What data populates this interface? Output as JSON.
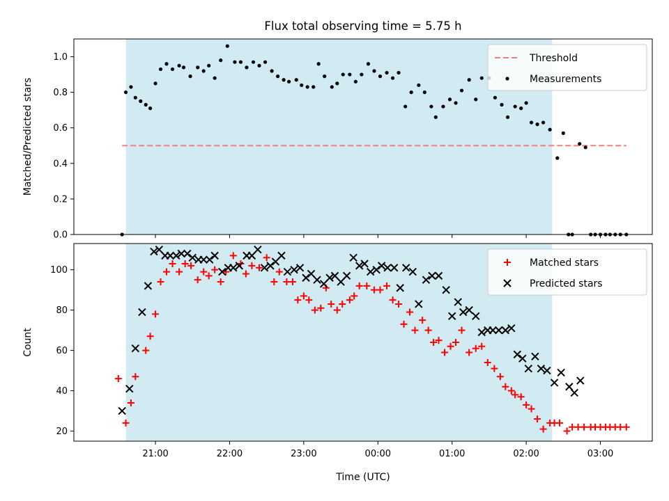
{
  "chart_data": [
    {
      "type": "scatter",
      "title": "Flux total observing time = 5.75 h",
      "xlabel": "",
      "ylabel": "Matched/Predicted stars",
      "ylim": [
        0,
        1.1
      ],
      "yticks": [
        "0.0",
        "0.2",
        "0.4",
        "0.6",
        "0.8",
        "1.0"
      ],
      "xlim_hours": [
        19.9,
        27.7
      ],
      "shaded_interval_hours": [
        20.6,
        26.35
      ],
      "shade_color": "#add8e6",
      "threshold": {
        "name": "Threshold",
        "value": 0.5,
        "x_range_hours": [
          20.55,
          27.35
        ],
        "color": "#f08080"
      },
      "legend": {
        "position": "upper right",
        "entries": [
          "Threshold",
          "Measurements"
        ]
      },
      "series": [
        {
          "name": "Measurements",
          "marker": "dot",
          "color": "#000000",
          "x": [
            20.55,
            20.6,
            20.67,
            20.73,
            20.8,
            20.87,
            20.93,
            21.0,
            21.07,
            21.15,
            21.23,
            21.32,
            21.38,
            21.47,
            21.57,
            21.65,
            21.72,
            21.8,
            21.88,
            21.97,
            22.07,
            22.15,
            22.23,
            22.32,
            22.4,
            22.48,
            22.57,
            22.65,
            22.73,
            22.8,
            22.9,
            22.97,
            23.05,
            23.13,
            23.2,
            23.28,
            23.38,
            23.45,
            23.53,
            23.62,
            23.7,
            23.78,
            23.87,
            23.95,
            24.03,
            24.12,
            24.2,
            24.28,
            24.37,
            24.45,
            24.55,
            24.63,
            24.72,
            24.78,
            24.88,
            24.97,
            25.05,
            25.13,
            25.23,
            25.32,
            25.4,
            25.5,
            25.58,
            25.67,
            25.75,
            25.85,
            25.93,
            26.0,
            26.07,
            26.15,
            26.23,
            26.32,
            26.42,
            26.5,
            26.57,
            26.62,
            26.72,
            26.8,
            26.87,
            26.93,
            27.0,
            27.07,
            27.13,
            27.2,
            27.27,
            27.35
          ],
          "y": [
            0.0,
            0.8,
            0.83,
            0.77,
            0.75,
            0.73,
            0.71,
            0.85,
            0.93,
            0.96,
            0.93,
            0.95,
            0.94,
            0.89,
            0.94,
            0.92,
            0.95,
            0.88,
            0.98,
            1.06,
            0.97,
            0.97,
            0.94,
            0.97,
            0.95,
            0.97,
            0.92,
            0.89,
            0.87,
            0.86,
            0.87,
            0.84,
            0.83,
            0.83,
            0.96,
            0.89,
            0.83,
            0.85,
            0.9,
            0.9,
            0.86,
            0.9,
            0.96,
            0.92,
            0.89,
            0.91,
            0.88,
            0.91,
            0.72,
            0.8,
            0.84,
            0.8,
            0.72,
            0.66,
            0.72,
            0.76,
            0.74,
            0.81,
            0.87,
            0.76,
            0.88,
            0.88,
            0.77,
            0.73,
            0.66,
            0.72,
            0.71,
            0.74,
            0.63,
            0.62,
            0.63,
            0.59,
            0.43,
            0.57,
            0.0,
            0.0,
            0.51,
            0.49,
            0.0,
            0.0,
            0.0,
            0.0,
            0.0,
            0.0,
            0.0,
            0.0
          ]
        }
      ]
    },
    {
      "type": "scatter",
      "title": "",
      "xlabel": "Time (UTC)",
      "ylabel": "Count",
      "ylim": [
        15,
        113
      ],
      "yticks": [
        "20",
        "40",
        "60",
        "80",
        "100"
      ],
      "xticks": [
        "21:00",
        "22:00",
        "23:00",
        "00:00",
        "01:00",
        "02:00",
        "03:00"
      ],
      "xlim_hours": [
        19.9,
        27.7
      ],
      "shaded_interval_hours": [
        20.6,
        26.35
      ],
      "shade_color": "#add8e6",
      "legend": {
        "position": "upper right",
        "entries": [
          "Matched stars",
          "Predicted stars"
        ]
      },
      "series": [
        {
          "name": "Matched stars",
          "marker": "plus",
          "color": "#ff0000",
          "x": [
            20.5,
            20.6,
            20.67,
            20.73,
            20.87,
            20.93,
            21.0,
            21.07,
            21.15,
            21.23,
            21.32,
            21.4,
            21.48,
            21.57,
            21.65,
            21.72,
            21.8,
            21.88,
            21.95,
            22.05,
            22.15,
            22.22,
            22.3,
            22.4,
            22.5,
            22.6,
            22.67,
            22.77,
            22.85,
            22.92,
            23.0,
            23.07,
            23.15,
            23.23,
            23.3,
            23.37,
            23.45,
            23.52,
            23.62,
            23.68,
            23.75,
            23.85,
            23.95,
            24.03,
            24.12,
            24.2,
            24.28,
            24.35,
            24.43,
            24.5,
            24.6,
            24.68,
            24.75,
            24.82,
            24.9,
            24.98,
            25.05,
            25.13,
            25.23,
            25.32,
            25.4,
            25.48,
            25.57,
            25.65,
            25.72,
            25.8,
            25.85,
            25.93,
            26.0,
            26.07,
            26.15,
            26.23,
            26.32,
            26.38,
            26.45,
            26.55,
            26.62,
            26.7,
            26.78,
            26.87,
            26.93,
            27.0,
            27.07,
            27.13,
            27.2,
            27.27,
            27.35
          ],
          "y": [
            46,
            24,
            34,
            47,
            60,
            67,
            78,
            94,
            99,
            103,
            99,
            103,
            102,
            95,
            99,
            97,
            100,
            94,
            99,
            107,
            103,
            98,
            102,
            101,
            106,
            94,
            99,
            94,
            94,
            85,
            87,
            85,
            80,
            81,
            91,
            83,
            80,
            83,
            85,
            87,
            92,
            92,
            90,
            90,
            92,
            85,
            83,
            73,
            79,
            70,
            75,
            70,
            64,
            65,
            59,
            62,
            64,
            70,
            59,
            61,
            62,
            54,
            51,
            47,
            42,
            40,
            38,
            37,
            33,
            31,
            26,
            21,
            24,
            24,
            24,
            20,
            22,
            22,
            22,
            22,
            22,
            22,
            22,
            22,
            22,
            22,
            22
          ]
        },
        {
          "name": "Predicted stars",
          "marker": "x",
          "color": "#000000",
          "x": [
            20.55,
            20.65,
            20.73,
            20.82,
            20.9,
            20.98,
            21.05,
            21.13,
            21.2,
            21.28,
            21.35,
            21.43,
            21.5,
            21.58,
            21.65,
            21.73,
            21.8,
            21.9,
            21.98,
            22.05,
            22.13,
            22.23,
            22.3,
            22.38,
            22.47,
            22.55,
            22.62,
            22.7,
            22.78,
            22.87,
            22.95,
            23.03,
            23.1,
            23.18,
            23.27,
            23.35,
            23.42,
            23.5,
            23.58,
            23.67,
            23.75,
            23.82,
            23.9,
            23.98,
            24.05,
            24.13,
            24.22,
            24.3,
            24.38,
            24.47,
            24.55,
            24.65,
            24.73,
            24.82,
            24.92,
            25.0,
            25.08,
            25.15,
            25.23,
            25.32,
            25.4,
            25.48,
            25.55,
            25.63,
            25.72,
            25.8,
            25.88,
            25.95,
            26.03,
            26.12,
            26.2,
            26.28,
            26.38,
            26.47,
            26.58,
            26.65,
            26.73
          ],
          "y": [
            30,
            41,
            61,
            79,
            92,
            109,
            110,
            107,
            107,
            107,
            108,
            108,
            106,
            105,
            105,
            105,
            107,
            99,
            101,
            101,
            102,
            107,
            107,
            110,
            101,
            102,
            104,
            107,
            99,
            100,
            101,
            96,
            98,
            95,
            93,
            96,
            97,
            94,
            97,
            106,
            102,
            103,
            99,
            100,
            102,
            101,
            101,
            91,
            101,
            99,
            83,
            95,
            97,
            97,
            90,
            77,
            84,
            79,
            80,
            77,
            69,
            70,
            70,
            70,
            70,
            71,
            58,
            56,
            51,
            57,
            51,
            50,
            44,
            49,
            42,
            39,
            45
          ]
        }
      ]
    }
  ]
}
